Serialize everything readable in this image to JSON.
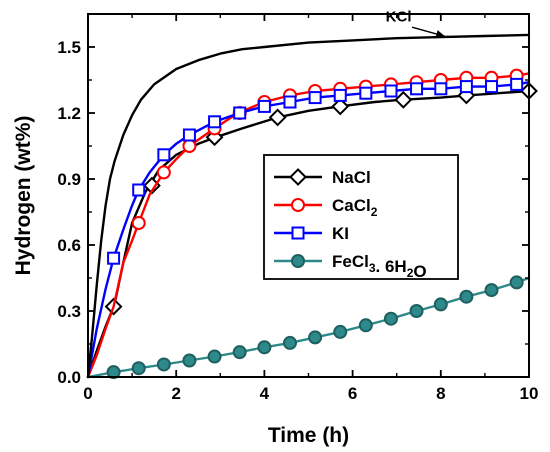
{
  "chart_data": {
    "type": "line",
    "title": "",
    "xlabel": "Time (h)",
    "ylabel": "Hydrogen (wt%)",
    "xlim": [
      0,
      10
    ],
    "ylim": [
      0,
      1.65
    ],
    "xticks": [
      0,
      2,
      4,
      6,
      8,
      10
    ],
    "xtick_labels": [
      "0",
      "2",
      "4",
      "6",
      "8",
      "10"
    ],
    "yticks": [
      0.0,
      0.3,
      0.6,
      0.9,
      1.2,
      1.5
    ],
    "ytick_labels": [
      "0.0",
      "0.3",
      "0.6",
      "0.9",
      "1.2",
      "1.5"
    ],
    "grid": false,
    "legend_position": "center-right",
    "series": [
      {
        "name": "NaCl",
        "label_base": "NaCl",
        "label_sub": "",
        "label_rest": "",
        "color": "#000000",
        "marker": "diamond",
        "marker_fill": "#ffffff",
        "x": [
          0,
          0.2,
          0.4,
          0.6,
          0.8,
          1.0,
          1.3,
          1.6,
          2.0,
          2.5,
          2.9,
          3.5,
          4.3,
          5.0,
          5.7,
          6.5,
          7.1,
          8.0,
          8.6,
          9.3,
          10.0
        ],
        "y": [
          0,
          0.12,
          0.23,
          0.33,
          0.52,
          0.7,
          0.84,
          0.94,
          1.01,
          1.06,
          1.09,
          1.13,
          1.18,
          1.21,
          1.23,
          1.25,
          1.26,
          1.27,
          1.28,
          1.29,
          1.3
        ],
        "markers_x": [
          0.58,
          1.45,
          2.87,
          4.3,
          5.72,
          7.15,
          8.58,
          10.0
        ],
        "markers_y": [
          0.32,
          0.87,
          1.09,
          1.18,
          1.23,
          1.26,
          1.28,
          1.3
        ]
      },
      {
        "name": "CaCl2",
        "label_base": "CaCl",
        "label_sub": "2",
        "label_rest": "",
        "color": "#ff0000",
        "marker": "circle",
        "marker_fill": "#ffffff",
        "x": [
          0,
          0.2,
          0.4,
          0.58,
          0.8,
          1.0,
          1.15,
          1.4,
          1.72,
          2.0,
          2.3,
          2.87,
          3.4,
          4.0,
          4.58,
          5.15,
          5.72,
          6.3,
          6.87,
          7.45,
          8.0,
          8.58,
          9.15,
          9.72,
          10.0
        ],
        "y": [
          0,
          0.1,
          0.22,
          0.32,
          0.52,
          0.62,
          0.7,
          0.83,
          0.93,
          0.99,
          1.05,
          1.13,
          1.2,
          1.25,
          1.28,
          1.3,
          1.31,
          1.32,
          1.33,
          1.34,
          1.35,
          1.36,
          1.36,
          1.37,
          1.38
        ],
        "markers_x": [
          1.15,
          1.72,
          2.3,
          2.87,
          3.44,
          4.0,
          4.58,
          5.15,
          5.72,
          6.3,
          6.87,
          7.45,
          8.0,
          8.58,
          9.15,
          9.72
        ],
        "markers_y": [
          0.7,
          0.93,
          1.05,
          1.13,
          1.2,
          1.25,
          1.28,
          1.3,
          1.31,
          1.32,
          1.33,
          1.34,
          1.35,
          1.36,
          1.36,
          1.37
        ]
      },
      {
        "name": "KI",
        "label_base": "KI",
        "label_sub": "",
        "label_rest": "",
        "color": "#0000ff",
        "marker": "square",
        "marker_fill": "#ffffff",
        "x": [
          0,
          0.2,
          0.4,
          0.58,
          0.8,
          1.0,
          1.15,
          1.4,
          1.72,
          2.0,
          2.3,
          2.87,
          3.44,
          4.0,
          4.58,
          5.15,
          5.72,
          6.3,
          6.87,
          7.45,
          8.0,
          8.58,
          9.15,
          9.72,
          10.0
        ],
        "y": [
          0,
          0.22,
          0.4,
          0.54,
          0.67,
          0.78,
          0.85,
          0.93,
          1.01,
          1.06,
          1.1,
          1.16,
          1.2,
          1.23,
          1.25,
          1.27,
          1.28,
          1.29,
          1.3,
          1.31,
          1.31,
          1.32,
          1.32,
          1.33,
          1.34
        ],
        "markers_x": [
          0.58,
          1.15,
          1.72,
          2.3,
          2.87,
          3.44,
          4.0,
          4.58,
          5.15,
          5.72,
          6.3,
          6.87,
          7.45,
          8.0,
          8.58,
          9.15,
          9.72
        ],
        "markers_y": [
          0.54,
          0.85,
          1.01,
          1.1,
          1.16,
          1.2,
          1.23,
          1.25,
          1.27,
          1.28,
          1.29,
          1.3,
          1.31,
          1.31,
          1.32,
          1.32,
          1.33
        ]
      },
      {
        "name": "FeCl3. 6H2O",
        "label_base": "FeCl",
        "label_sub": "3",
        "label_rest": ". 6H",
        "label_sub2": "2",
        "label_end": "O",
        "color": "#2e8a8a",
        "marker": "circle",
        "marker_fill": "#2e8a8a",
        "x": [
          0,
          0.58,
          1.15,
          1.72,
          2.3,
          2.87,
          3.44,
          4.0,
          4.58,
          5.15,
          5.72,
          6.3,
          6.87,
          7.45,
          8.0,
          8.58,
          9.15,
          9.72,
          10.0
        ],
        "y": [
          0,
          0.022,
          0.04,
          0.057,
          0.075,
          0.093,
          0.113,
          0.135,
          0.155,
          0.18,
          0.205,
          0.235,
          0.265,
          0.3,
          0.33,
          0.365,
          0.395,
          0.43,
          0.45
        ],
        "markers_x": [
          0.58,
          1.15,
          1.72,
          2.3,
          2.87,
          3.44,
          4.0,
          4.58,
          5.15,
          5.72,
          6.3,
          6.87,
          7.45,
          8.0,
          8.58,
          9.15,
          9.72
        ],
        "markers_y": [
          0.022,
          0.04,
          0.057,
          0.075,
          0.093,
          0.113,
          0.135,
          0.155,
          0.18,
          0.205,
          0.235,
          0.265,
          0.3,
          0.33,
          0.365,
          0.395,
          0.43
        ]
      },
      {
        "name": "KCl",
        "legend": false,
        "color": "#000000",
        "marker": "none",
        "x": [
          0,
          0.1,
          0.2,
          0.3,
          0.4,
          0.5,
          0.6,
          0.8,
          1.0,
          1.2,
          1.5,
          2.0,
          2.5,
          3.0,
          3.5,
          4.0,
          5.0,
          6.0,
          7.0,
          8.0,
          9.0,
          10.0
        ],
        "y": [
          0,
          0.2,
          0.42,
          0.62,
          0.78,
          0.9,
          0.98,
          1.1,
          1.19,
          1.26,
          1.33,
          1.4,
          1.44,
          1.47,
          1.49,
          1.5,
          1.52,
          1.53,
          1.54,
          1.545,
          1.55,
          1.555
        ]
      }
    ],
    "annotations": [
      {
        "text": "KCl",
        "label_x": 6.75,
        "label_y": 1.615,
        "arrow_from_x": 7.35,
        "arrow_from_y": 1.59,
        "arrow_to_x": 8.1,
        "arrow_to_y": 1.548
      }
    ]
  }
}
